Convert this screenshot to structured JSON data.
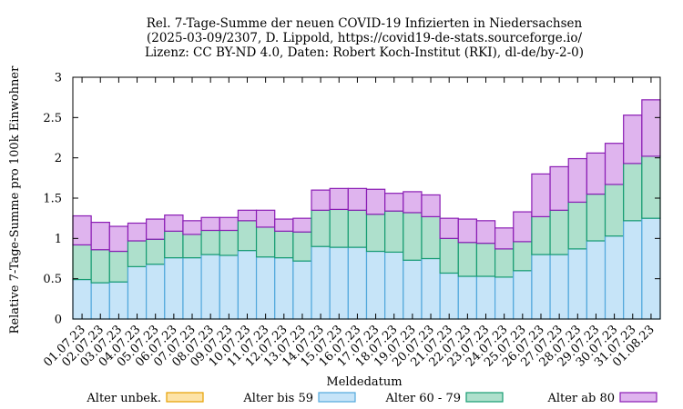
{
  "chart_data": {
    "type": "bar",
    "stacked": true,
    "title_lines": [
      "Rel. 7-Tage-Summe der neuen COVID-19 Infizierten in Niedersachsen",
      "(2025-03-09/2307, D. Lippold, https://covid19-de-stats.sourceforge.io/",
      "Lizenz: CC BY-ND 4.0, Daten: Robert Koch-Institut (RKI), dl-de/by-2-0)"
    ],
    "xlabel": "Meldedatum",
    "ylabel": "Relative 7-Tage-Summe pro 100k Einwohner",
    "ylim": [
      0,
      3
    ],
    "yticks": [
      0,
      0.5,
      1,
      1.5,
      2,
      2.5,
      3
    ],
    "ytick_labels": [
      "0",
      "0.5",
      "1",
      "1.5",
      "2",
      "2.5",
      "3"
    ],
    "grid": false,
    "legend_position": "bottom",
    "categories": [
      "01.07.23",
      "02.07.23",
      "03.07.23",
      "04.07.23",
      "05.07.23",
      "06.07.23",
      "07.07.23",
      "08.07.23",
      "09.07.23",
      "10.07.23",
      "11.07.23",
      "12.07.23",
      "13.07.23",
      "14.07.23",
      "15.07.23",
      "16.07.23",
      "17.07.23",
      "18.07.23",
      "19.07.23",
      "20.07.23",
      "21.07.23",
      "22.07.23",
      "23.07.23",
      "24.07.23",
      "25.07.23",
      "26.07.23",
      "27.07.23",
      "28.07.23",
      "29.07.23",
      "30.07.23",
      "31.07.23",
      "01.08.23"
    ],
    "series": [
      {
        "name": "Alter unbek.",
        "fill": "#fde3a7",
        "stroke": "#e6a000",
        "values": [
          0,
          0,
          0,
          0,
          0,
          0,
          0,
          0,
          0,
          0,
          0,
          0,
          0,
          0,
          0,
          0,
          0,
          0,
          0,
          0,
          0,
          0,
          0,
          0,
          0,
          0,
          0,
          0,
          0,
          0,
          0,
          0
        ]
      },
      {
        "name": "Alter bis 59",
        "fill": "#c6e4f8",
        "stroke": "#52a8dc",
        "values": [
          0.49,
          0.45,
          0.46,
          0.65,
          0.68,
          0.76,
          0.76,
          0.8,
          0.79,
          0.85,
          0.77,
          0.76,
          0.72,
          0.9,
          0.89,
          0.89,
          0.84,
          0.83,
          0.73,
          0.75,
          0.57,
          0.53,
          0.53,
          0.52,
          0.6,
          0.8,
          0.8,
          0.87,
          0.97,
          1.03,
          1.22,
          1.25
        ]
      },
      {
        "name": "Alter 60 - 79",
        "fill": "#aee0cc",
        "stroke": "#179c72",
        "values": [
          0.43,
          0.41,
          0.38,
          0.32,
          0.31,
          0.33,
          0.29,
          0.3,
          0.31,
          0.37,
          0.37,
          0.33,
          0.36,
          0.45,
          0.47,
          0.46,
          0.46,
          0.51,
          0.59,
          0.52,
          0.43,
          0.42,
          0.41,
          0.35,
          0.36,
          0.47,
          0.55,
          0.58,
          0.58,
          0.64,
          0.71,
          0.77
        ]
      },
      {
        "name": "Alter ab 80",
        "fill": "#dfb4ee",
        "stroke": "#8a1cb4",
        "values": [
          0.36,
          0.34,
          0.31,
          0.22,
          0.25,
          0.2,
          0.17,
          0.16,
          0.16,
          0.13,
          0.21,
          0.15,
          0.17,
          0.25,
          0.26,
          0.27,
          0.31,
          0.22,
          0.26,
          0.27,
          0.25,
          0.29,
          0.28,
          0.26,
          0.37,
          0.53,
          0.54,
          0.54,
          0.51,
          0.51,
          0.6,
          0.7
        ]
      }
    ]
  }
}
